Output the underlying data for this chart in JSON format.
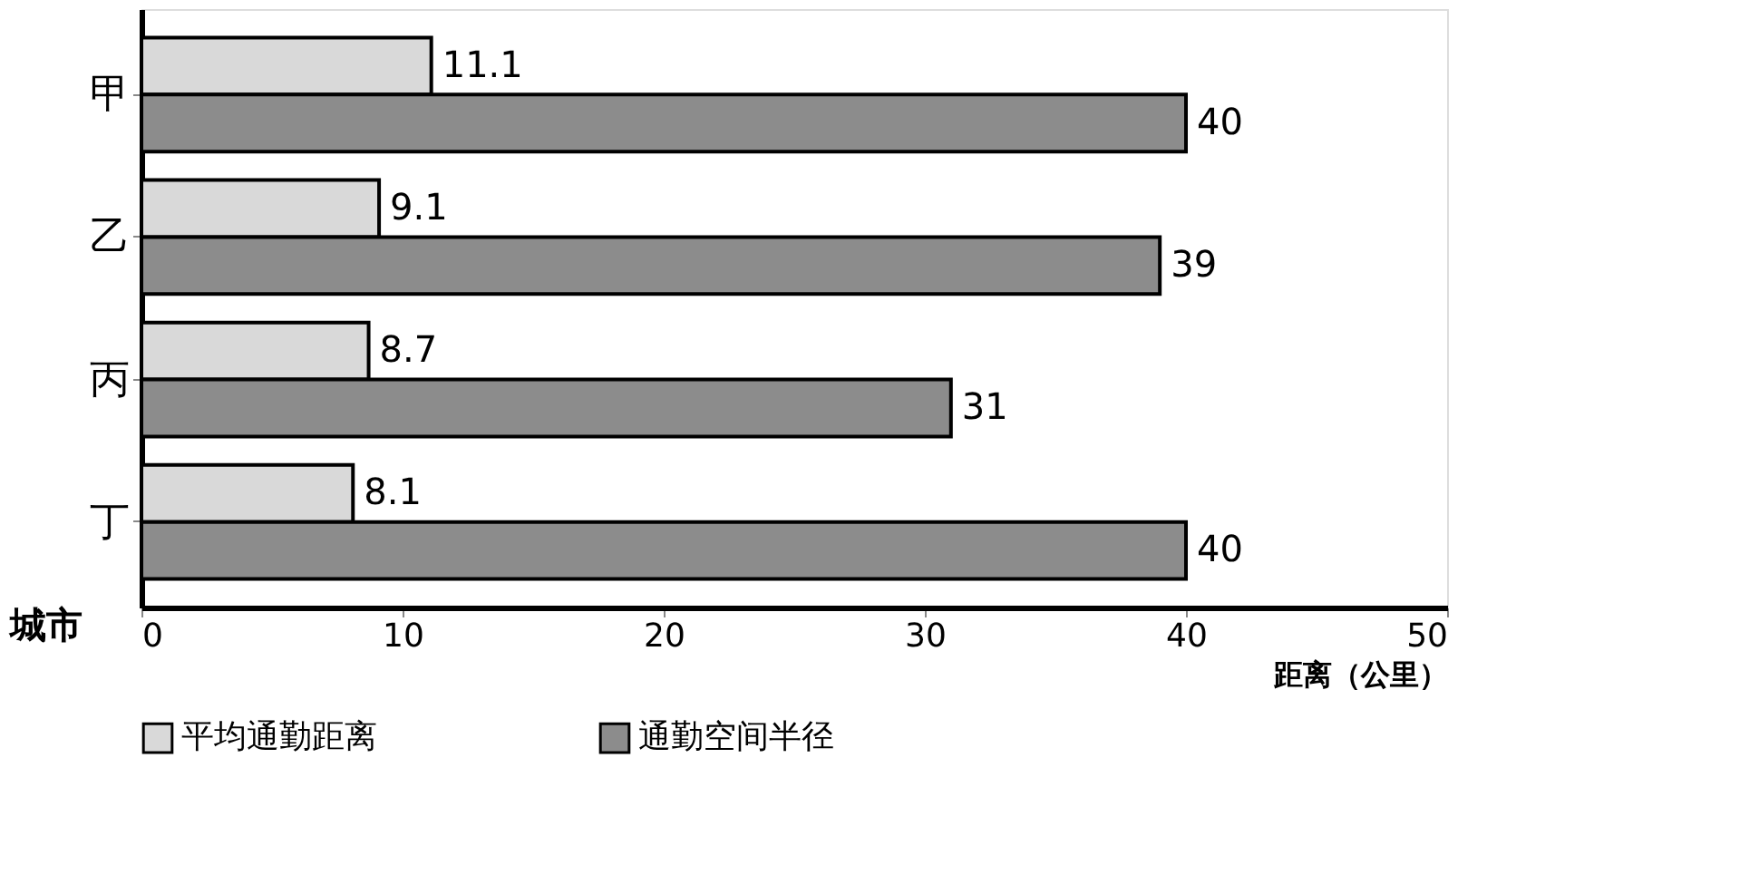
{
  "chart_data": {
    "type": "bar",
    "orientation": "horizontal",
    "categories": [
      "甲",
      "乙",
      "丙",
      "丁"
    ],
    "series": [
      {
        "name": "平均通勤距离",
        "color": "#d9d9d9",
        "values": [
          11.1,
          9.1,
          8.7,
          8.1
        ]
      },
      {
        "name": "通勤空间半径",
        "color": "#8c8c8c",
        "values": [
          40,
          39,
          31,
          40
        ]
      }
    ],
    "xlim": [
      0,
      50
    ],
    "xticks": [
      0,
      10,
      20,
      30,
      40,
      50
    ],
    "xlabel": "距离（公里）",
    "ylabel": "城市",
    "data_labels": true,
    "legend": "bottom",
    "grid": false
  }
}
